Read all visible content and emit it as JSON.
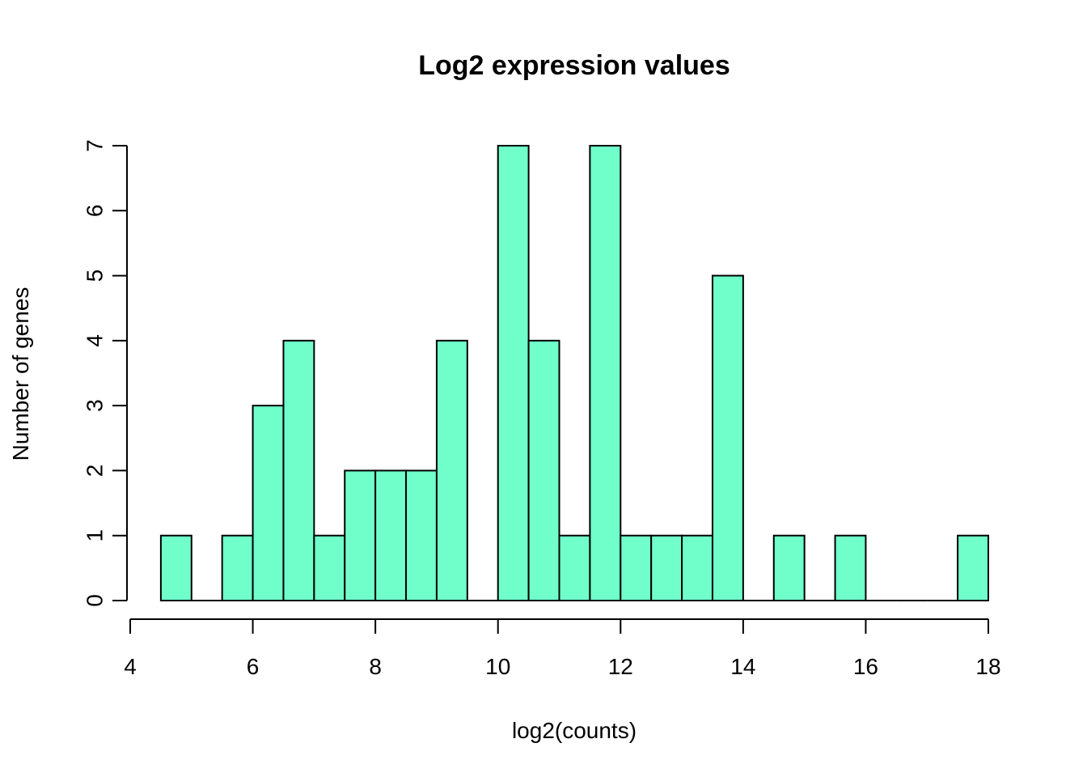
{
  "chart_data": {
    "type": "bar",
    "title": "Log2 expression values",
    "xlabel": "log2(counts)",
    "ylabel": "Number of genes",
    "xlim": [
      4,
      18
    ],
    "ylim": [
      0,
      7
    ],
    "xticks": [
      4,
      6,
      8,
      10,
      12,
      14,
      16,
      18
    ],
    "yticks": [
      0,
      1,
      2,
      3,
      4,
      5,
      6,
      7
    ],
    "bin_width": 0.5,
    "bins": [
      {
        "x0": 4.5,
        "x1": 5.0,
        "count": 1
      },
      {
        "x0": 5.0,
        "x1": 5.5,
        "count": 0
      },
      {
        "x0": 5.5,
        "x1": 6.0,
        "count": 1
      },
      {
        "x0": 6.0,
        "x1": 6.5,
        "count": 3
      },
      {
        "x0": 6.5,
        "x1": 7.0,
        "count": 4
      },
      {
        "x0": 7.0,
        "x1": 7.5,
        "count": 1
      },
      {
        "x0": 7.5,
        "x1": 8.0,
        "count": 2
      },
      {
        "x0": 8.0,
        "x1": 8.5,
        "count": 2
      },
      {
        "x0": 8.5,
        "x1": 9.0,
        "count": 2
      },
      {
        "x0": 9.0,
        "x1": 9.5,
        "count": 4
      },
      {
        "x0": 9.5,
        "x1": 10.0,
        "count": 0
      },
      {
        "x0": 10.0,
        "x1": 10.5,
        "count": 7
      },
      {
        "x0": 10.5,
        "x1": 11.0,
        "count": 4
      },
      {
        "x0": 11.0,
        "x1": 11.5,
        "count": 1
      },
      {
        "x0": 11.5,
        "x1": 12.0,
        "count": 7
      },
      {
        "x0": 12.0,
        "x1": 12.5,
        "count": 1
      },
      {
        "x0": 12.5,
        "x1": 13.0,
        "count": 1
      },
      {
        "x0": 13.0,
        "x1": 13.5,
        "count": 1
      },
      {
        "x0": 13.5,
        "x1": 14.0,
        "count": 5
      },
      {
        "x0": 14.0,
        "x1": 14.5,
        "count": 0
      },
      {
        "x0": 14.5,
        "x1": 15.0,
        "count": 1
      },
      {
        "x0": 15.0,
        "x1": 15.5,
        "count": 0
      },
      {
        "x0": 15.5,
        "x1": 16.0,
        "count": 1
      },
      {
        "x0": 16.0,
        "x1": 16.5,
        "count": 0
      },
      {
        "x0": 16.5,
        "x1": 17.0,
        "count": 0
      },
      {
        "x0": 17.0,
        "x1": 17.5,
        "count": 0
      },
      {
        "x0": 17.5,
        "x1": 18.0,
        "count": 1
      }
    ],
    "bar_color": "#70FFCB",
    "grid": false,
    "legend": "none"
  }
}
